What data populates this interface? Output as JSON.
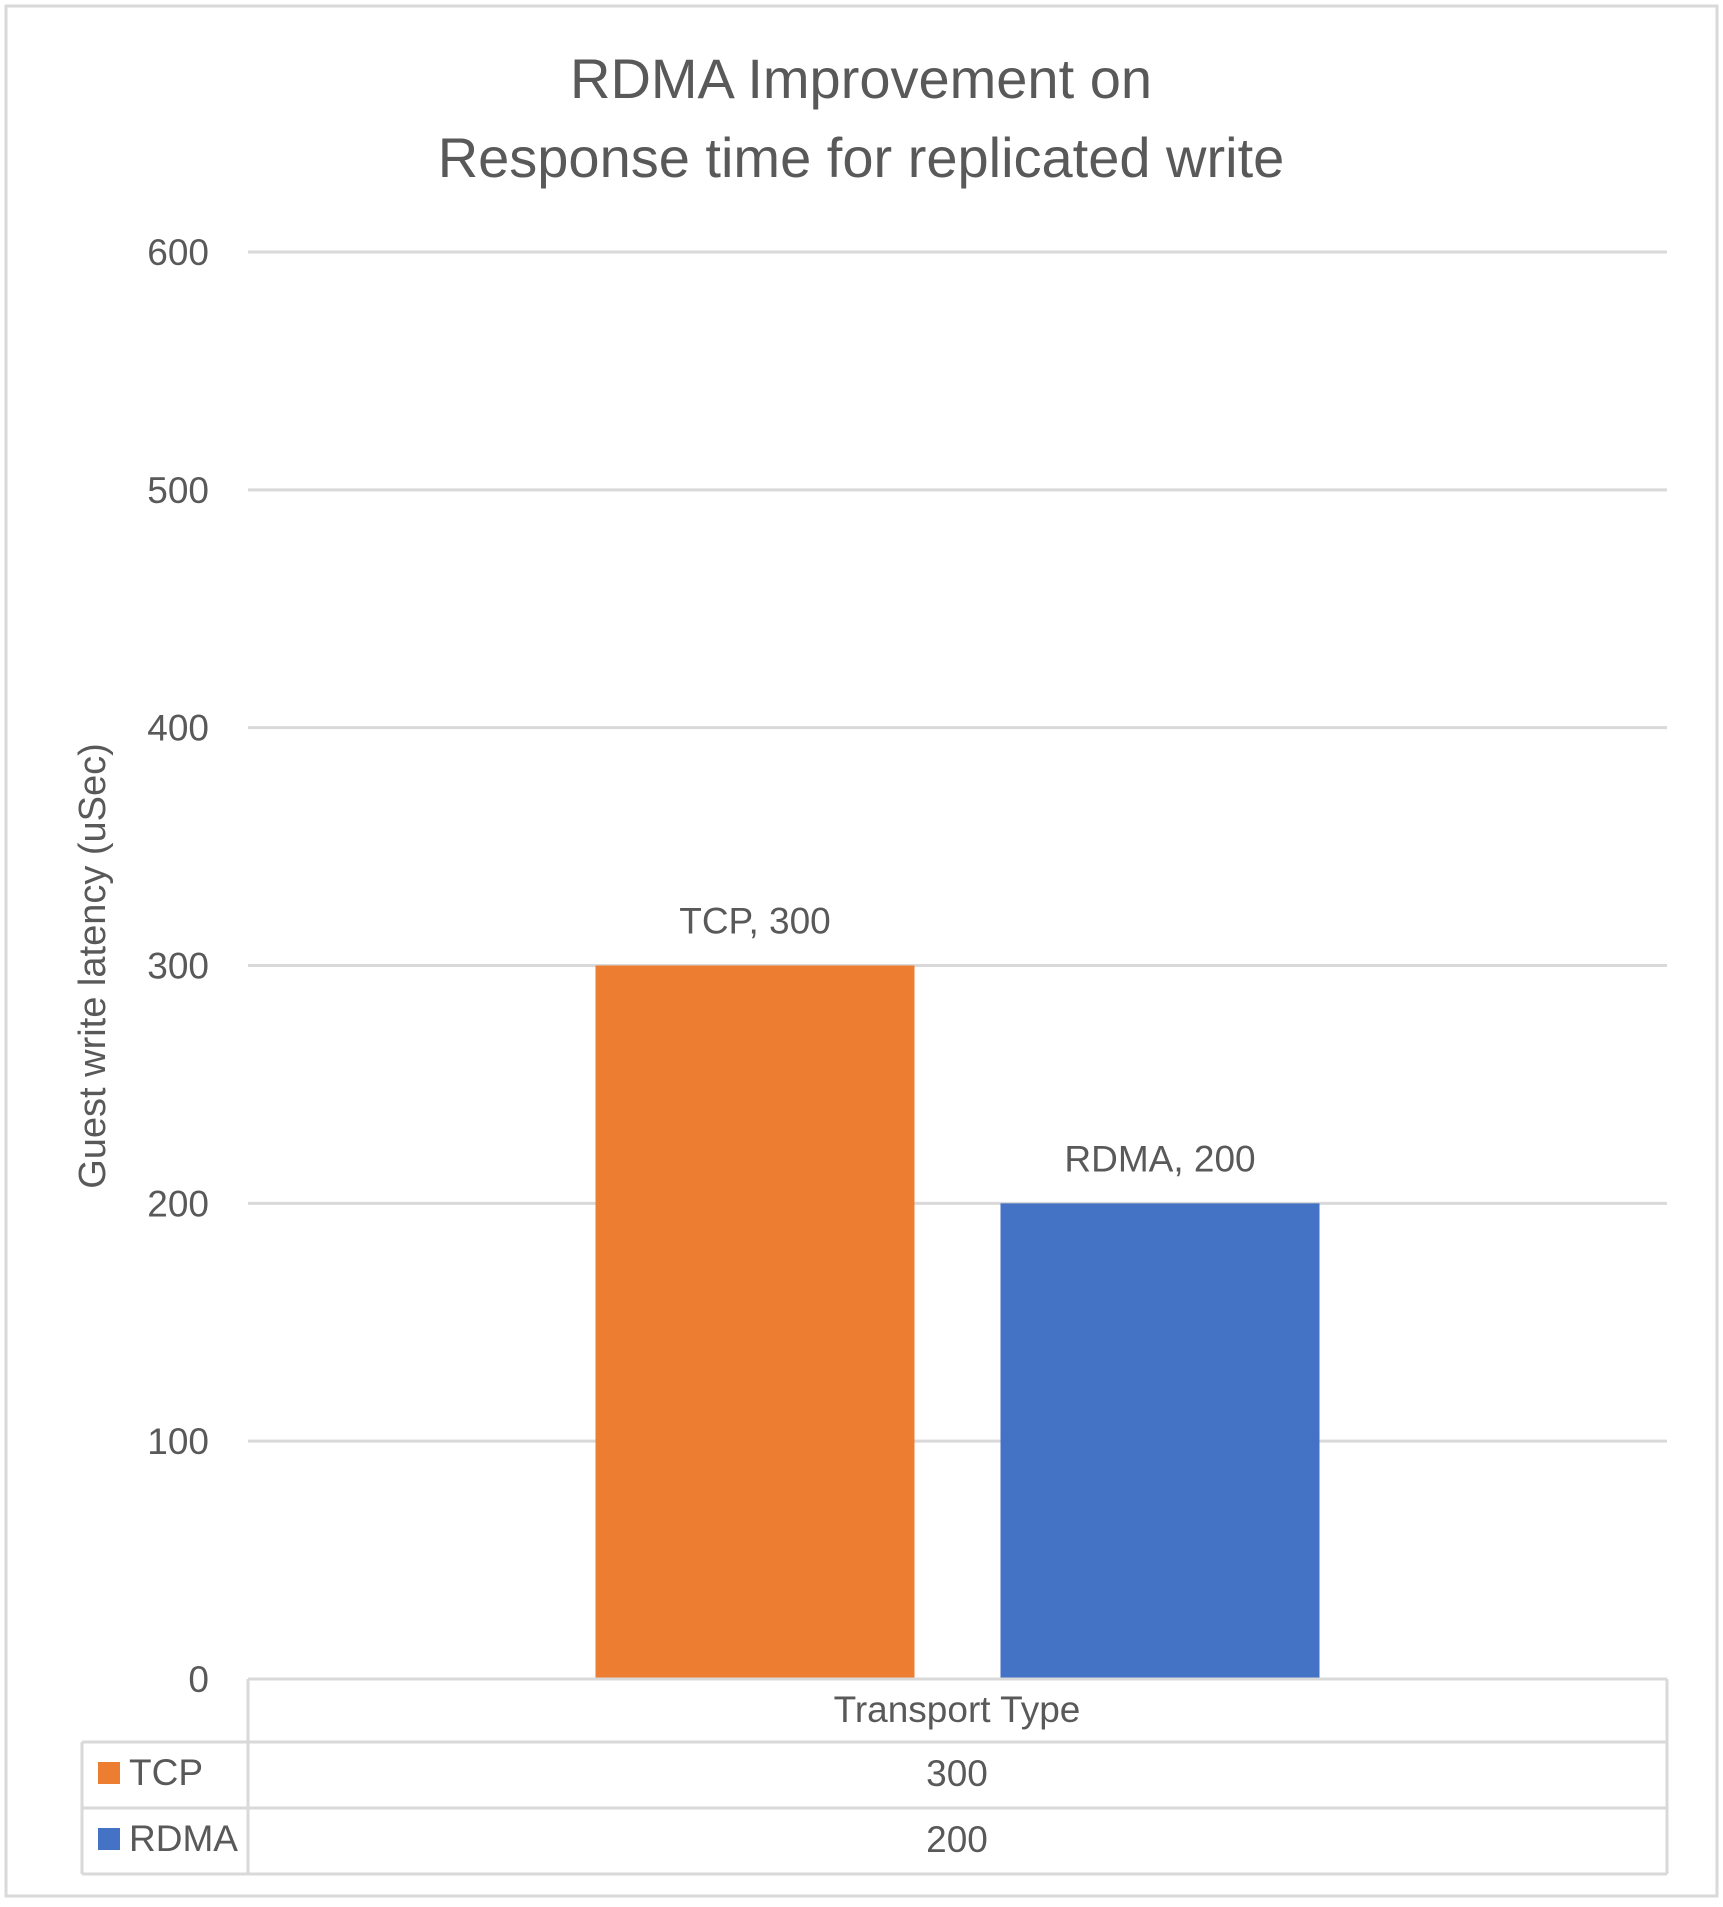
{
  "colors": {
    "tcp": "#ED7D31",
    "rdma": "#4472C4",
    "grid": "#D9D9D9",
    "text": "#595959",
    "border": "#D9D9D9"
  },
  "chart_data": {
    "type": "bar",
    "title_lines": [
      "RDMA Improvement on",
      "Response time for replicated write"
    ],
    "xlabel": "",
    "ylabel": "Guest write latency (uSec)",
    "category_label": "Transport Type",
    "ylim": [
      0,
      600
    ],
    "yticks": [
      0,
      100,
      200,
      300,
      400,
      500,
      600
    ],
    "grid": true,
    "series": [
      {
        "name": "TCP",
        "values": [
          300
        ],
        "data_label": "TCP, 300",
        "table_value": "300",
        "color": "#ED7D31"
      },
      {
        "name": "RDMA",
        "values": [
          200
        ],
        "data_label": "RDMA, 200",
        "table_value": "200",
        "color": "#4472C4"
      }
    ],
    "legend": "data-table"
  }
}
